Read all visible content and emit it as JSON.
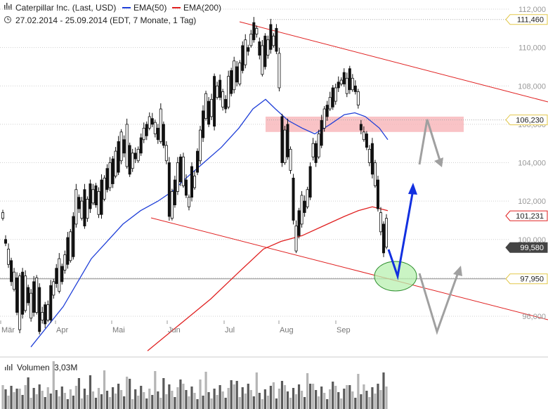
{
  "header": {
    "title": "Caterpillar Inc. (Last, USD)",
    "legend": [
      {
        "label": "EMA(50)",
        "color": "#1f3fd8"
      },
      {
        "label": "EMA(200)",
        "color": "#e02020"
      }
    ],
    "period": "27.02.2014 - 25.09.2014 (EDT, 7 Monate, 1 Tag)",
    "icons": [
      "bar-chart-icon",
      "clock-icon"
    ]
  },
  "chart_data": {
    "type": "candlestick",
    "title": "Caterpillar Inc. (Last, USD)",
    "subtitle": "27.02.2014 - 25.09.2014 (EDT, 7 Monate, 1 Tag)",
    "ylim": [
      94.5,
      112.4
    ],
    "y_ticks": [
      "96,000",
      "98,000",
      "100,000",
      "102,000",
      "104,000",
      "106,000",
      "108,000",
      "110,000",
      "112,000"
    ],
    "x_ticks": [
      "Mär",
      "Apr",
      "Mai",
      "Jun",
      "Jul",
      "Aug",
      "Sep"
    ],
    "series": [
      {
        "name": "EMA(50)",
        "color": "#1f3fd8",
        "points": [
          [
            44,
            94.4
          ],
          [
            90,
            96.5
          ],
          [
            130,
            99.0
          ],
          [
            175,
            100.8
          ],
          [
            200,
            101.5
          ],
          [
            225,
            102.0
          ],
          [
            245,
            102.5
          ],
          [
            265,
            103.2
          ],
          [
            290,
            104.0
          ],
          [
            315,
            104.8
          ],
          [
            340,
            105.8
          ],
          [
            360,
            106.8
          ],
          [
            378,
            107.3
          ],
          [
            392,
            106.8
          ],
          [
            410,
            106.2
          ],
          [
            430,
            105.8
          ],
          [
            448,
            105.5
          ],
          [
            470,
            106.0
          ],
          [
            490,
            106.5
          ],
          [
            505,
            106.6
          ],
          [
            520,
            106.4
          ],
          [
            540,
            105.8
          ],
          [
            552,
            105.2
          ]
        ]
      },
      {
        "name": "EMA(200)",
        "color": "#e02020",
        "points": [
          [
            210,
            94.2
          ],
          [
            260,
            95.7
          ],
          [
            300,
            96.9
          ],
          [
            340,
            98.3
          ],
          [
            375,
            99.5
          ],
          [
            400,
            99.9
          ],
          [
            430,
            100.2
          ],
          [
            460,
            100.7
          ],
          [
            490,
            101.2
          ],
          [
            510,
            101.5
          ],
          [
            530,
            101.7
          ],
          [
            552,
            101.5
          ]
        ]
      }
    ],
    "candles_approx": [
      [
        101.1,
        101.4
      ],
      [
        99.8,
        100.0
      ],
      [
        98.7,
        99.5
      ],
      [
        97.8,
        98.9
      ],
      [
        97.4,
        98.3
      ],
      [
        96.2,
        98.0
      ],
      [
        95.3,
        98.1
      ],
      [
        96.1,
        98.3
      ],
      [
        96.3,
        98.1
      ],
      [
        96.7,
        97.5
      ],
      [
        95.9,
        97.2
      ],
      [
        96.2,
        97.8
      ],
      [
        96.2,
        98.0
      ],
      [
        95.2,
        97.5
      ],
      [
        95.8,
        96.2
      ],
      [
        95.6,
        96.6
      ],
      [
        95.8,
        96.6
      ],
      [
        95.8,
        97.6
      ],
      [
        97.1,
        97.8
      ],
      [
        97.7,
        98.5
      ],
      [
        97.3,
        99.0
      ],
      [
        97.8,
        98.6
      ],
      [
        98.4,
        99.2
      ],
      [
        98.7,
        100.1
      ],
      [
        98.9,
        100.4
      ],
      [
        99.1,
        101.2
      ],
      [
        100.8,
        102.6
      ],
      [
        101.6,
        102.2
      ],
      [
        101.1,
        102.0
      ],
      [
        100.7,
        102.6
      ],
      [
        101.1,
        102.1
      ],
      [
        101.6,
        102.9
      ],
      [
        101.9,
        102.6
      ],
      [
        101.8,
        102.8
      ],
      [
        101.3,
        102.5
      ],
      [
        101.3,
        103.1
      ],
      [
        102.1,
        103.2
      ],
      [
        102.6,
        103.7
      ],
      [
        102.7,
        104.0
      ],
      [
        102.9,
        104.2
      ],
      [
        103.3,
        104.6
      ],
      [
        103.5,
        105.1
      ],
      [
        104.1,
        105.6
      ],
      [
        104.5,
        105.2
      ],
      [
        103.8,
        106.0
      ],
      [
        103.4,
        104.9
      ],
      [
        103.7,
        104.5
      ],
      [
        104.2,
        104.5
      ],
      [
        104.1,
        104.7
      ],
      [
        104.5,
        105.3
      ],
      [
        105.2,
        105.8
      ],
      [
        105.4,
        106.0
      ],
      [
        105.8,
        106.4
      ],
      [
        106.0,
        106.3
      ],
      [
        105.5,
        106.1
      ],
      [
        105.2,
        105.8
      ],
      [
        105.1,
        106.8
      ],
      [
        104.9,
        106.0
      ],
      [
        104.1,
        104.9
      ],
      [
        101.2,
        104.0
      ],
      [
        101.1,
        102.5
      ],
      [
        101.8,
        103.1
      ],
      [
        102.5,
        104.0
      ],
      [
        103.0,
        104.3
      ],
      [
        102.8,
        104.3
      ],
      [
        102.3,
        103.1
      ],
      [
        101.7,
        102.2
      ],
      [
        102.2,
        103.8
      ],
      [
        102.7,
        103.3
      ],
      [
        103.5,
        104.6
      ],
      [
        104.1,
        105.7
      ],
      [
        105.3,
        106.7
      ],
      [
        106.3,
        107.6
      ],
      [
        106.0,
        107.2
      ],
      [
        106.4,
        107.3
      ],
      [
        105.9,
        108.5
      ],
      [
        107.4,
        108.0
      ],
      [
        107.4,
        108.3
      ],
      [
        106.9,
        107.7
      ],
      [
        106.8,
        107.3
      ],
      [
        106.9,
        108.5
      ],
      [
        107.6,
        108.8
      ],
      [
        107.8,
        109.3
      ],
      [
        108.2,
        109.0
      ],
      [
        108.1,
        109.2
      ],
      [
        108.8,
        110.1
      ],
      [
        109.1,
        110.4
      ],
      [
        109.8,
        110.0
      ],
      [
        110.1,
        110.7
      ],
      [
        110.4,
        111.3
      ],
      [
        110.7,
        111.0
      ],
      [
        109.6,
        110.3
      ],
      [
        108.6,
        110.1
      ],
      [
        109.0,
        110.6
      ],
      [
        109.6,
        110.4
      ],
      [
        109.9,
        111.2
      ],
      [
        110.1,
        110.6
      ],
      [
        109.8,
        111.0
      ],
      [
        107.9,
        109.7
      ],
      [
        104.0,
        106.4
      ],
      [
        104.0,
        105.7
      ],
      [
        104.3,
        106.0
      ],
      [
        103.6,
        104.7
      ],
      [
        101.0,
        103.2
      ],
      [
        99.4,
        100.7
      ],
      [
        100.2,
        101.5
      ],
      [
        100.8,
        102.3
      ],
      [
        101.4,
        102.0
      ],
      [
        101.7,
        102.6
      ],
      [
        102.2,
        103.8
      ],
      [
        104.3,
        105.0
      ],
      [
        104.0,
        105.0
      ],
      [
        104.3,
        105.5
      ],
      [
        104.9,
        106.2
      ],
      [
        105.8,
        106.8
      ],
      [
        106.4,
        107.0
      ],
      [
        106.8,
        107.4
      ],
      [
        106.9,
        107.9
      ],
      [
        107.2,
        107.9
      ],
      [
        107.9,
        108.2
      ],
      [
        108.1,
        108.3
      ],
      [
        108.1,
        108.7
      ],
      [
        107.6,
        108.4
      ],
      [
        107.8,
        108.9
      ],
      [
        107.8,
        108.4
      ],
      [
        107.7,
        108.0
      ],
      [
        107.0,
        107.7
      ],
      [
        105.7,
        106.0
      ],
      [
        105.2,
        105.6
      ],
      [
        104.8,
        105.5
      ],
      [
        104.0,
        104.7
      ],
      [
        103.4,
        105.0
      ],
      [
        102.8,
        104.0
      ],
      [
        101.6,
        103.1
      ],
      [
        100.4,
        101.4
      ],
      [
        99.3,
        100.8
      ],
      [
        99.6,
        101.1
      ]
    ],
    "volume": {
      "label": "Volumen",
      "value": "3,03M"
    },
    "annotations": {
      "resistance_zone": [
        105.6,
        106.4
      ],
      "support_line": 97.95
    },
    "price_tags": [
      {
        "label": "111,460",
        "value": 111.46,
        "style": "outline-yellow"
      },
      {
        "label": "106,230",
        "value": 106.23,
        "style": "outline-yellow"
      },
      {
        "label": "101,231",
        "value": 101.231,
        "style": "outline-red"
      },
      {
        "label": "99,580",
        "value": 99.58,
        "style": "dark"
      },
      {
        "label": "97,950",
        "value": 97.95,
        "style": "outline-yellow"
      }
    ]
  }
}
